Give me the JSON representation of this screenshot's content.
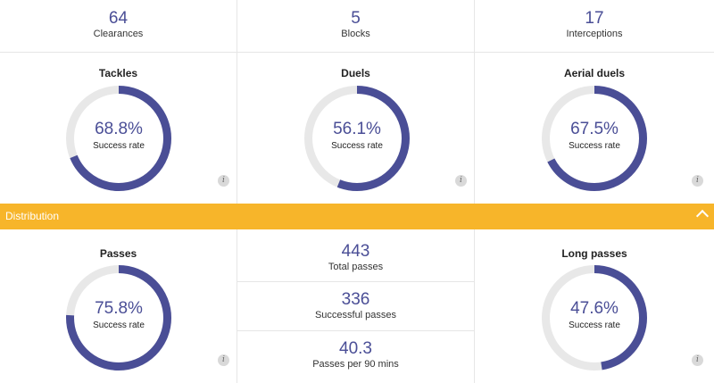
{
  "top_stats": [
    {
      "value": "64",
      "label": "Clearances"
    },
    {
      "value": "5",
      "label": "Blocks"
    },
    {
      "value": "17",
      "label": "Interceptions"
    }
  ],
  "defence_cards": [
    {
      "title": "Tackles",
      "value": "68.8%",
      "label": "Success rate",
      "fraction": 0.688
    },
    {
      "title": "Duels",
      "value": "56.1%",
      "label": "Success rate",
      "fraction": 0.561
    },
    {
      "title": "Aerial duels",
      "value": "67.5%",
      "label": "Success rate",
      "fraction": 0.675
    }
  ],
  "section_bar": {
    "title": "Distribution"
  },
  "passes_card": {
    "title": "Passes",
    "value": "75.8%",
    "label": "Success rate",
    "fraction": 0.758
  },
  "pass_stats": [
    {
      "value": "443",
      "label": "Total passes"
    },
    {
      "value": "336",
      "label": "Successful passes"
    },
    {
      "value": "40.3",
      "label": "Passes per 90 mins"
    }
  ],
  "long_passes_card": {
    "title": "Long passes",
    "value": "47.6%",
    "label": "Success rate",
    "fraction": 0.476
  },
  "info_icon": "i",
  "colors": {
    "accent": "#4a4e96",
    "track": "#e8e8e8",
    "bar": "#f7b52a"
  }
}
